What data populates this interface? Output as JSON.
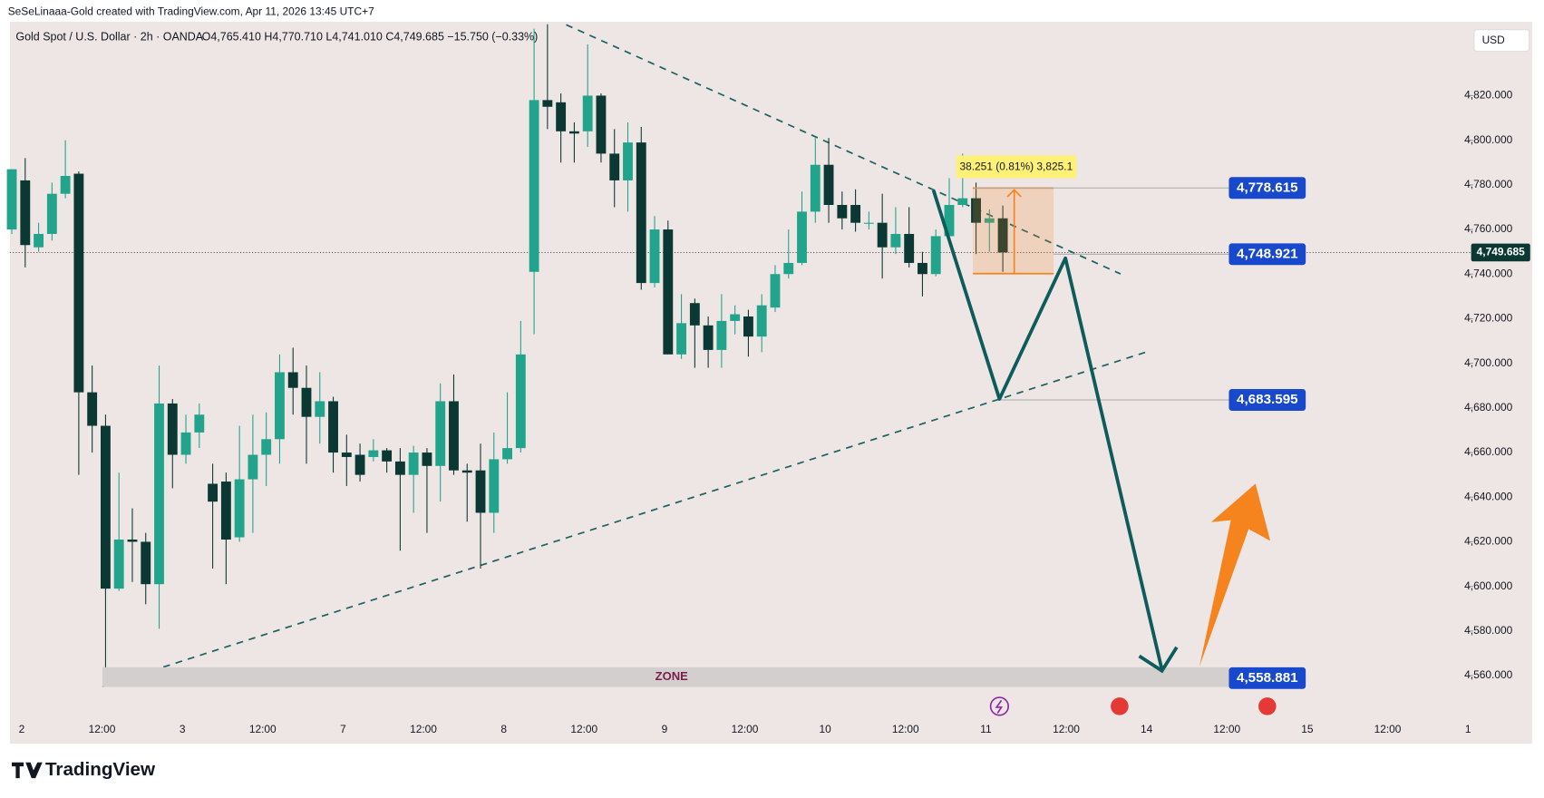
{
  "attribution": "SeSeLinaaa-Gold created with TradingView.com, Apr 11, 2026 13:45 UTC+7",
  "brand": "TradingView",
  "chart_data": {
    "type": "candlestick",
    "symbol": "Gold Spot / U.S. Dollar · 2h · OANDA",
    "ohlc_header": "O4,765.410 H4,770.710 L4,741.010 C4,749.685 −15.750 (−0.33%)",
    "currency": "USD",
    "up_color": "#22a48c",
    "down_color": "#0c3833",
    "ylim": [
      4541.4,
      4853.1
    ],
    "yticks": [
      {
        "value": 4560,
        "label": "4,560.000"
      },
      {
        "value": 4580,
        "label": "4,580.000"
      },
      {
        "value": 4600,
        "label": "4,600.000"
      },
      {
        "value": 4620,
        "label": "4,620.000"
      },
      {
        "value": 4640,
        "label": "4,640.000"
      },
      {
        "value": 4660,
        "label": "4,660.000"
      },
      {
        "value": 4680,
        "label": "4,680.000"
      },
      {
        "value": 4700,
        "label": "4,700.000"
      },
      {
        "value": 4720,
        "label": "4,720.000"
      },
      {
        "value": 4740,
        "label": "4,740.000"
      },
      {
        "value": 4760,
        "label": "4,760.000"
      },
      {
        "value": 4780,
        "label": "4,780.000"
      },
      {
        "value": 4800,
        "label": "4,800.000"
      },
      {
        "value": 4820,
        "label": "4,820.000"
      }
    ],
    "time_labels": [
      "2",
      "12:00",
      "3",
      "12:00",
      "7",
      "12:00",
      "8",
      "12:00",
      "9",
      "12:00",
      "10",
      "12:00",
      "11",
      "12:00",
      "14",
      "12:00",
      "15",
      "12:00",
      "1"
    ],
    "last_price": {
      "value": 4749.685,
      "label": "4,749.685"
    },
    "ohlc": [
      [
        4760,
        4787,
        4758,
        4787
      ],
      [
        4782,
        4792,
        4743,
        4753
      ],
      [
        4752,
        4763,
        4750,
        4758
      ],
      [
        4758,
        4781,
        4755,
        4776
      ],
      [
        4776,
        4800,
        4774,
        4784
      ],
      [
        4785,
        4786,
        4650,
        4687
      ],
      [
        4687,
        4699,
        4660,
        4672
      ],
      [
        4672,
        4677,
        4555,
        4599
      ],
      [
        4599,
        4651,
        4598,
        4621
      ],
      [
        4621,
        4635,
        4602,
        4620
      ],
      [
        4620,
        4624,
        4592,
        4601
      ],
      [
        4601,
        4699,
        4581,
        4682
      ],
      [
        4682,
        4684,
        4644,
        4659
      ],
      [
        4659,
        4677,
        4655,
        4669
      ],
      [
        4669,
        4682,
        4662,
        4677
      ],
      [
        4646,
        4655,
        4608,
        4638
      ],
      [
        4647,
        4651,
        4601,
        4621
      ],
      [
        4622,
        4672,
        4620,
        4648
      ],
      [
        4648,
        4677,
        4624,
        4659
      ],
      [
        4659,
        4678,
        4645,
        4666
      ],
      [
        4666,
        4704,
        4655,
        4696
      ],
      [
        4696,
        4707,
        4677,
        4689
      ],
      [
        4689,
        4699,
        4655,
        4676
      ],
      [
        4676,
        4696,
        4664,
        4683
      ],
      [
        4683,
        4685,
        4651,
        4660
      ],
      [
        4660,
        4668,
        4645,
        4658
      ],
      [
        4659,
        4664,
        4647,
        4650
      ],
      [
        4658,
        4666,
        4656,
        4661
      ],
      [
        4661,
        4662,
        4651,
        4656
      ],
      [
        4656,
        4662,
        4616,
        4650
      ],
      [
        4650,
        4663,
        4633,
        4660
      ],
      [
        4660,
        4662,
        4624,
        4654
      ],
      [
        4654,
        4691,
        4638,
        4683
      ],
      [
        4683,
        4695,
        4650,
        4652
      ],
      [
        4652,
        4655,
        4629,
        4651
      ],
      [
        4652,
        4664,
        4608,
        4633
      ],
      [
        4633,
        4669,
        4624,
        4657
      ],
      [
        4657,
        4687,
        4655,
        4662
      ],
      [
        4662,
        4719,
        4660,
        4704
      ],
      [
        4741,
        4850,
        4713,
        4818
      ],
      [
        4818,
        4852,
        4805,
        4815
      ],
      [
        4817,
        4821,
        4790,
        4804
      ],
      [
        4804,
        4808,
        4790,
        4803
      ],
      [
        4804,
        4843,
        4797,
        4820
      ],
      [
        4820,
        4821,
        4790,
        4794
      ],
      [
        4794,
        4805,
        4770,
        4782
      ],
      [
        4782,
        4808,
        4768,
        4799
      ],
      [
        4799,
        4806,
        4733,
        4736
      ],
      [
        4736,
        4766,
        4734,
        4760
      ],
      [
        4760,
        4764,
        4704,
        4704
      ],
      [
        4704,
        4731,
        4702,
        4718
      ],
      [
        4727,
        4729,
        4698,
        4717
      ],
      [
        4717,
        4721,
        4698,
        4706
      ],
      [
        4706,
        4731,
        4698,
        4719
      ],
      [
        4719,
        4726,
        4713,
        4722
      ],
      [
        4721,
        4724,
        4703,
        4712
      ],
      [
        4712,
        4731,
        4705,
        4726
      ],
      [
        4725,
        4744,
        4723,
        4740
      ],
      [
        4740,
        4760,
        4738,
        4745
      ],
      [
        4745,
        4777,
        4744,
        4768
      ],
      [
        4768,
        4801,
        4763,
        4789
      ],
      [
        4789,
        4801,
        4763,
        4771
      ],
      [
        4771,
        4777,
        4760,
        4765
      ],
      [
        4771,
        4778,
        4759,
        4763
      ],
      [
        4763,
        4768,
        4760,
        4763
      ],
      [
        4763,
        4776,
        4738,
        4752
      ],
      [
        4752,
        4770,
        4749,
        4758
      ],
      [
        4758,
        4770,
        4743,
        4745
      ],
      [
        4745,
        4750,
        4730,
        4740
      ],
      [
        4740,
        4760,
        4739,
        4757
      ],
      [
        4757,
        4783,
        4756,
        4771
      ],
      [
        4771,
        4794,
        4770,
        4774
      ],
      [
        4774,
        4781,
        4749,
        4763
      ],
      [
        4763,
        4769,
        4750,
        4765
      ],
      [
        4765,
        4770.71,
        4741.01,
        4749.685
      ]
    ],
    "price_annotations": [
      {
        "value": 4778.615,
        "label": "4,778.615"
      },
      {
        "value": 4748.921,
        "label": "4,748.921"
      },
      {
        "value": 4683.595,
        "label": "4,683.595"
      },
      {
        "value": 4558.881,
        "label": "4,558.881"
      }
    ],
    "zone_label": "ZONE",
    "measure_label": "38.251 (0.81%) 3,825.1"
  }
}
